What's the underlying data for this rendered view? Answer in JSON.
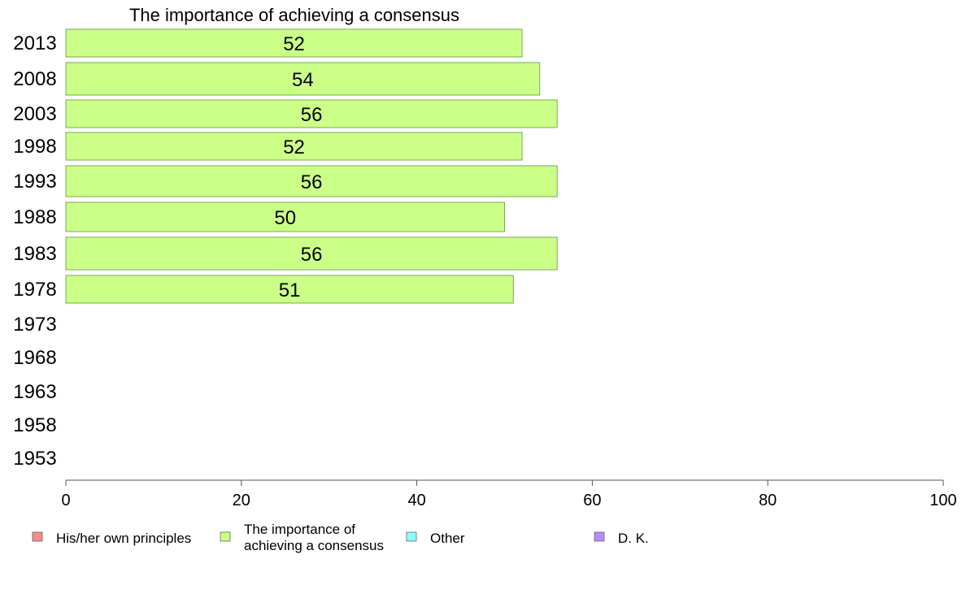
{
  "chart_data": {
    "type": "bar",
    "orientation": "horizontal",
    "stacked": true,
    "title": "The importance of achieving a consensus",
    "categories": [
      "2013",
      "2008",
      "2003",
      "1998",
      "1993",
      "1988",
      "1983",
      "1978",
      "1973",
      "1968",
      "1963",
      "1958",
      "1953"
    ],
    "series": [
      {
        "name": "The importance of achieving a consensus",
        "color": "#ccff88",
        "values": [
          52,
          54,
          56,
          52,
          56,
          50,
          56,
          51,
          null,
          null,
          null,
          null,
          null
        ],
        "labels": [
          "52",
          "54",
          "56",
          "52",
          "56",
          "50",
          "56",
          "51",
          "",
          "",
          "",
          "",
          ""
        ]
      }
    ],
    "xlim": [
      0,
      100
    ],
    "xticks": [
      "0",
      "20",
      "40",
      "60",
      "80",
      "100"
    ],
    "grid": false,
    "legend_position": "bottom"
  },
  "legend": [
    {
      "lines": [
        "His/her own principles"
      ],
      "color": "#ff8888"
    },
    {
      "lines": [
        "The importance of",
        "achieving a consensus"
      ],
      "color": "#ccff88"
    },
    {
      "lines": [
        "Other"
      ],
      "color": "#88ffff"
    },
    {
      "lines": [
        "D. K."
      ],
      "color": "#bb88ff"
    }
  ]
}
